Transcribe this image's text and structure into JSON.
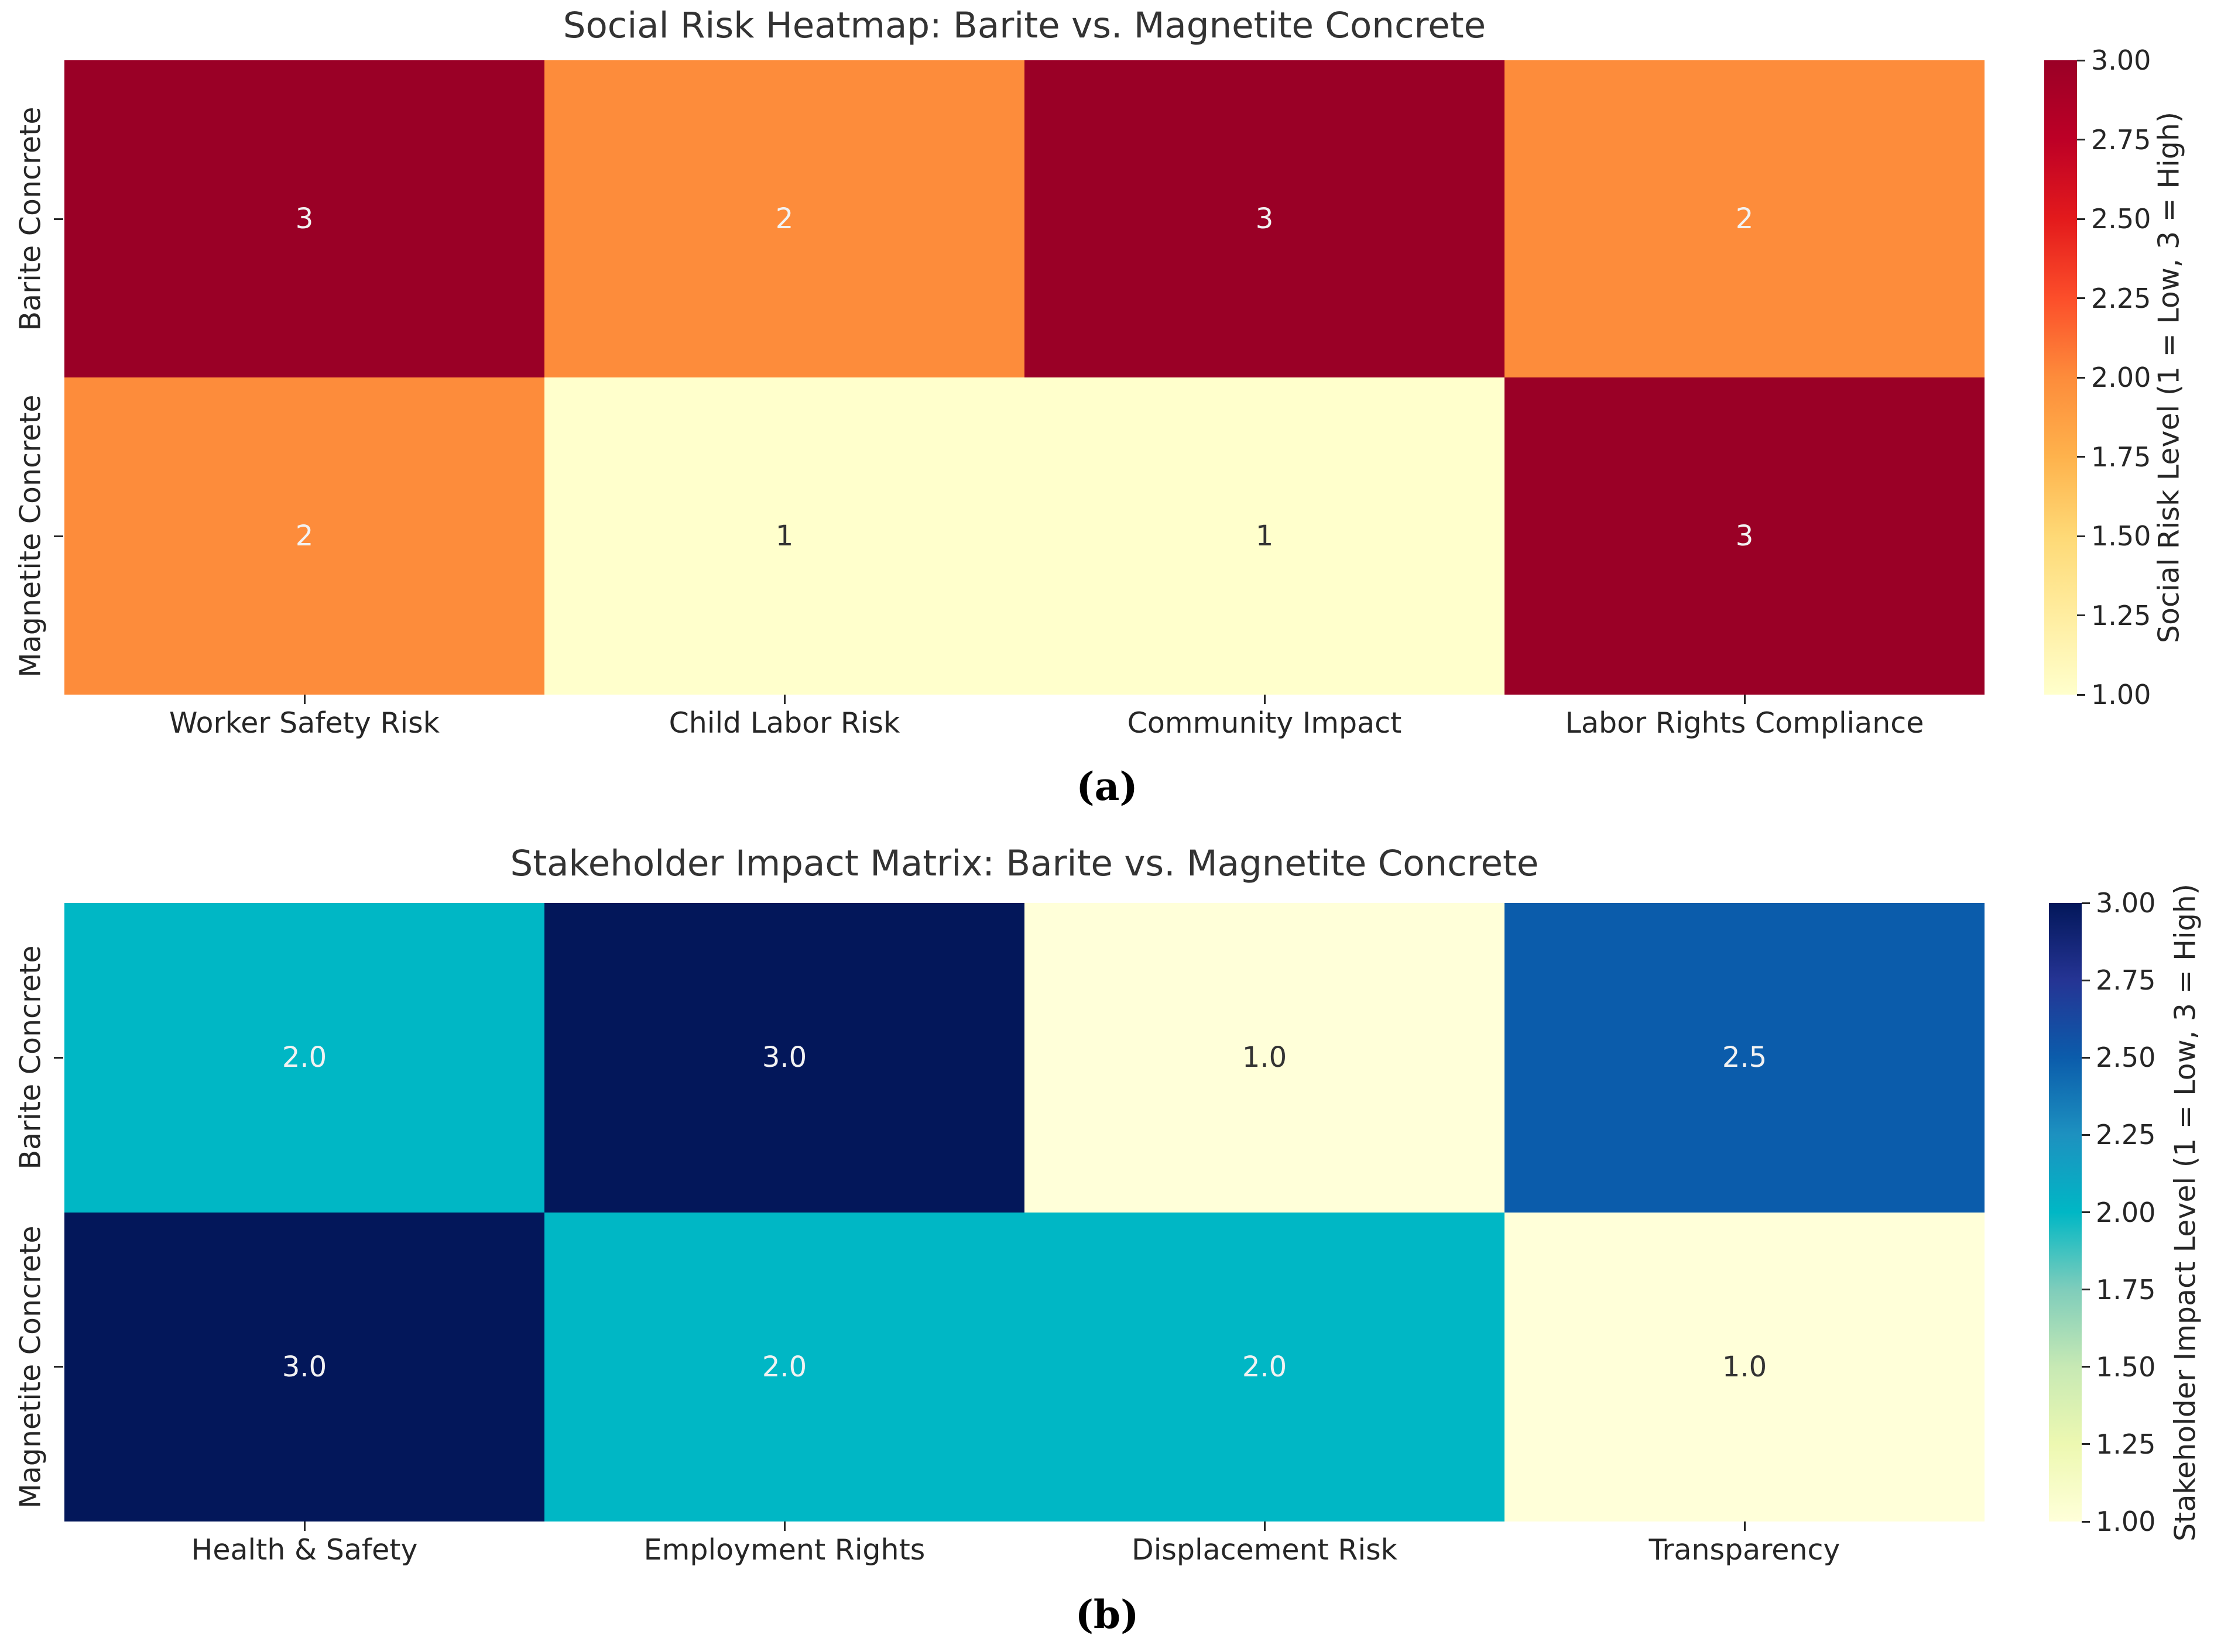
{
  "figure": {
    "background_color": "#ffffff",
    "panel_captions": [
      "(a)",
      "(b)"
    ]
  },
  "chart_data": [
    {
      "type": "heatmap",
      "title": "Social Risk Heatmap: Barite vs. Magnetite Concrete",
      "rows": [
        "Barite Concrete",
        "Magnetite Concrete"
      ],
      "columns": [
        "Worker Safety Risk",
        "Child Labor Risk",
        "Community Impact",
        "Labor Rights Compliance"
      ],
      "values": [
        [
          3,
          2,
          3,
          2
        ],
        [
          2,
          1,
          1,
          3
        ]
      ],
      "value_labels": [
        [
          "3",
          "2",
          "3",
          "2"
        ],
        [
          "2",
          "1",
          "1",
          "3"
        ]
      ],
      "vmin": 1,
      "vmax": 3,
      "colormap_name": "YlOrRd",
      "colormap_stops": [
        "#ffffcc",
        "#ffeda0",
        "#fed976",
        "#feb24c",
        "#fd8c3b",
        "#fc4e2a",
        "#e31a1c",
        "#bd0026",
        "#9a0026"
      ],
      "cell_colors": [
        [
          "#9a0026",
          "#fd8c3b",
          "#9a0026",
          "#fd8c3b"
        ],
        [
          "#fd8c3b",
          "#ffffcc",
          "#ffffcc",
          "#9a0026"
        ]
      ],
      "cell_text_colors": [
        [
          "#f2f2f2",
          "#f2f2f2",
          "#f2f2f2",
          "#f2f2f2"
        ],
        [
          "#f2f2f2",
          "#333333",
          "#333333",
          "#f2f2f2"
        ]
      ],
      "colorbar": {
        "label": "Social Risk Level (1 = Low, 3 = High)",
        "ticks": [
          "1.00",
          "1.25",
          "1.50",
          "1.75",
          "2.00",
          "2.25",
          "2.50",
          "2.75",
          "3.00"
        ]
      },
      "panel_label": "(a)",
      "legend_position": "right-colorbar",
      "grid": false
    },
    {
      "type": "heatmap",
      "title": "Stakeholder Impact Matrix: Barite vs. Magnetite Concrete",
      "rows": [
        "Barite Concrete",
        "Magnetite Concrete"
      ],
      "columns": [
        "Health & Safety",
        "Employment Rights",
        "Displacement Risk",
        "Transparency"
      ],
      "values": [
        [
          2.0,
          3.0,
          1.0,
          2.5
        ],
        [
          3.0,
          2.0,
          2.0,
          1.0
        ]
      ],
      "value_labels": [
        [
          "2.0",
          "3.0",
          "1.0",
          "2.5"
        ],
        [
          "3.0",
          "2.0",
          "2.0",
          "1.0"
        ]
      ],
      "vmin": 1,
      "vmax": 3,
      "colormap_name": "YlGnBu",
      "colormap_stops": [
        "#ffffd9",
        "#edf8b1",
        "#c7e9b4",
        "#7fcdbb",
        "#00b7c5",
        "#1d91c0",
        "#0b5cab",
        "#253494",
        "#03175a"
      ],
      "cell_colors": [
        [
          "#00b7c5",
          "#03175a",
          "#ffffd9",
          "#0b5cab"
        ],
        [
          "#03175a",
          "#00b7c5",
          "#00b7c5",
          "#ffffd9"
        ]
      ],
      "cell_text_colors": [
        [
          "#f2f2f2",
          "#f2f2f2",
          "#333333",
          "#f2f2f2"
        ],
        [
          "#f2f2f2",
          "#f2f2f2",
          "#f2f2f2",
          "#333333"
        ]
      ],
      "colorbar": {
        "label": "Stakeholder Impact Level (1 = Low, 3 = High)",
        "ticks": [
          "1.00",
          "1.25",
          "1.50",
          "1.75",
          "2.00",
          "2.25",
          "2.50",
          "2.75",
          "3.00"
        ]
      },
      "panel_label": "(b)",
      "legend_position": "right-colorbar",
      "grid": false
    }
  ]
}
